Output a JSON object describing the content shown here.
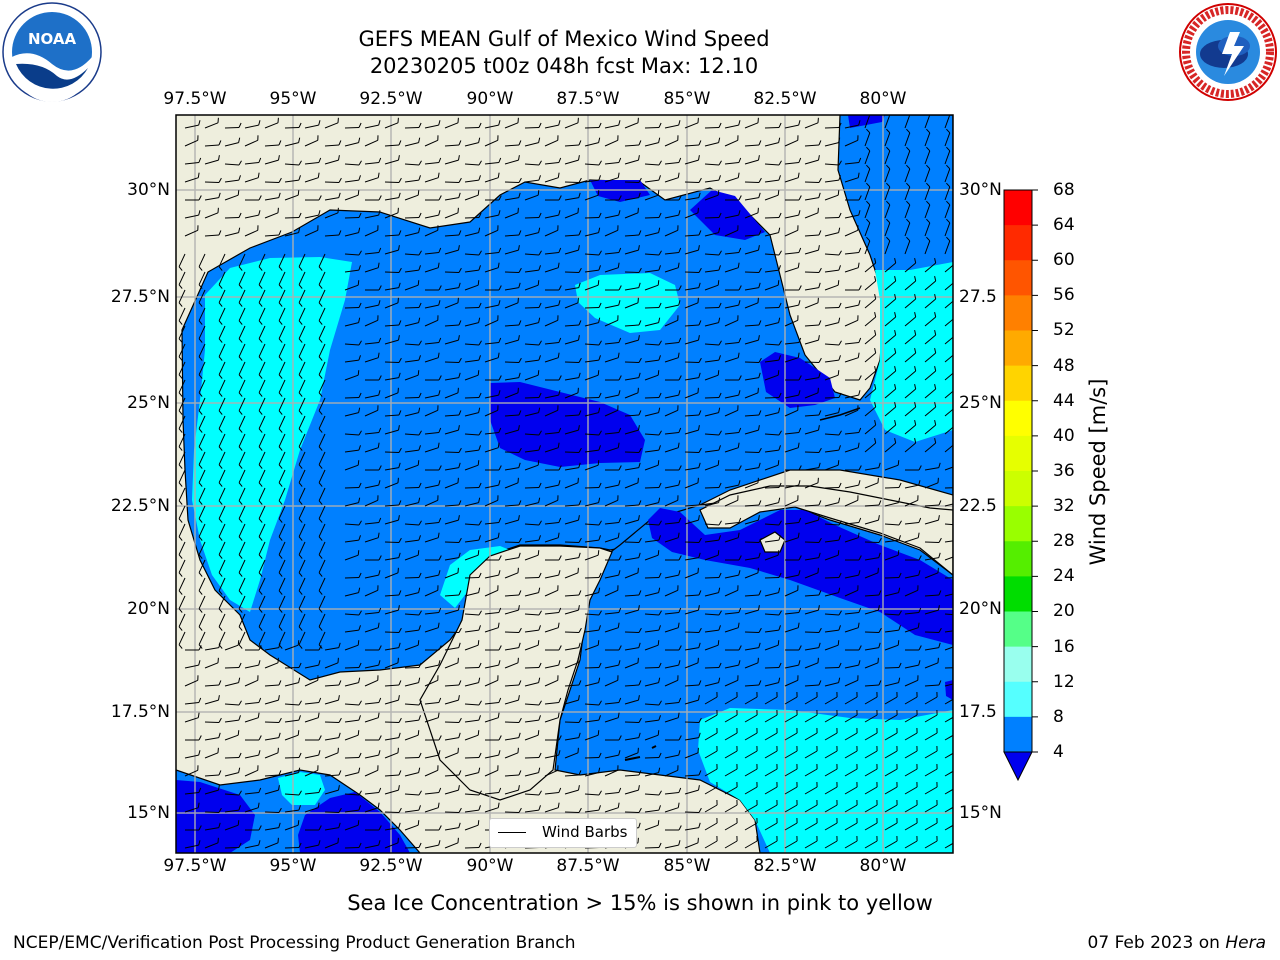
{
  "title": {
    "line1": "GEFS MEAN Gulf of Mexico Wind Speed",
    "line2": "20230205 t00z 048h fcst   Max: 12.10"
  },
  "axes": {
    "lon_labels": [
      "97.5°W",
      "95°W",
      "92.5°W",
      "90°W",
      "87.5°W",
      "85°W",
      "82.5°W",
      "80°W"
    ],
    "lat_labels": [
      "30°N",
      "27.5°N",
      "25°N",
      "22.5°N",
      "20°N",
      "17.5°N",
      "15°N"
    ],
    "lat_labels_right": [
      "30°N",
      "27.5",
      "25°N",
      "22.5",
      "20°N",
      "17.5",
      "15°N"
    ]
  },
  "colorbar": {
    "label": "Wind Speed [m/s]",
    "ticks": [
      "68",
      "64",
      "60",
      "56",
      "52",
      "48",
      "44",
      "40",
      "36",
      "32",
      "28",
      "24",
      "20",
      "16",
      "12",
      "8",
      "4"
    ],
    "colors": [
      "#ff0000",
      "#ff2a00",
      "#ff5500",
      "#ff8000",
      "#ffaa00",
      "#ffd400",
      "#ffff00",
      "#e6ff00",
      "#ccff00",
      "#99ff00",
      "#55ee00",
      "#00dd00",
      "#55ff88",
      "#99ffee",
      "#55ffff",
      "#00ffff",
      "#0080ff"
    ],
    "under_color": "#0000ee"
  },
  "legend": {
    "label": "Wind Barbs"
  },
  "subtitle": "Sea Ice Concentration > 15% is shown in pink to yellow",
  "footer": {
    "left": "NCEP/EMC/Verification Post Processing Product Generation Branch",
    "right_prefix": "07 Feb 2023 on ",
    "right_machine": "Hera"
  },
  "logos": {
    "left": "NOAA",
    "right": "NATIONAL WEATHER SERVICE"
  },
  "map_colors": {
    "land": "#eeeedd",
    "ocean_4_8": "#0080ff",
    "ocean_8_12": "#00ffff",
    "ocean_lt4": "#0000ee"
  }
}
